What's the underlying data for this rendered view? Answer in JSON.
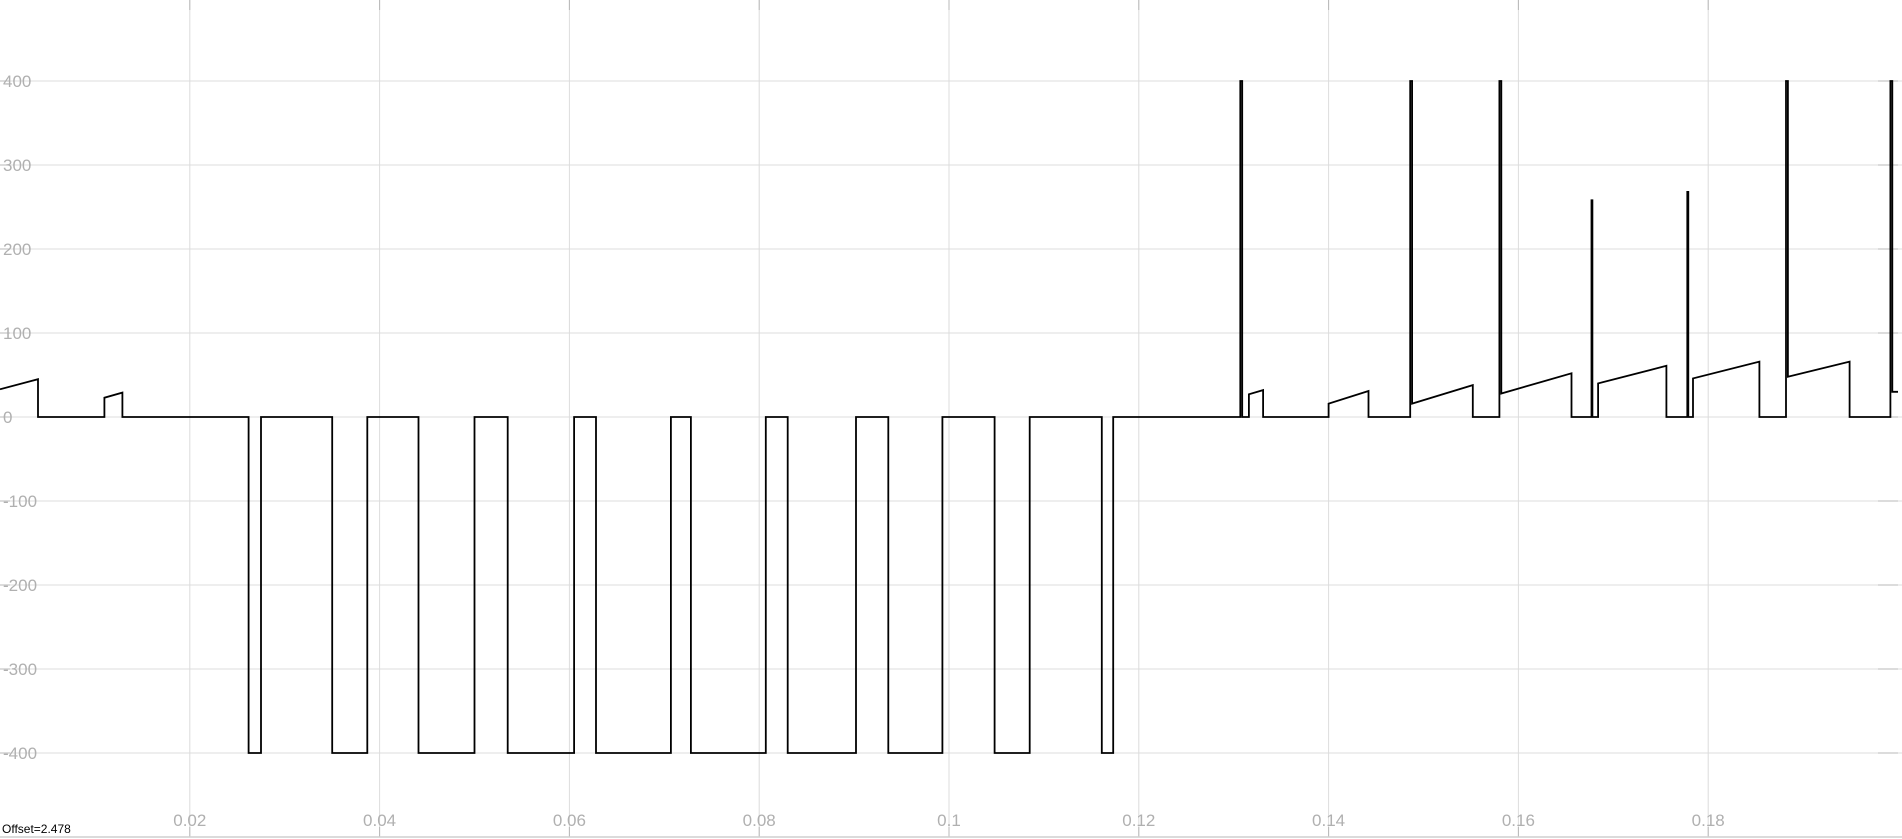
{
  "chart_data": {
    "type": "line",
    "title": "",
    "xlabel": "",
    "ylabel": "",
    "xlim": [
      0,
      0.2
    ],
    "ylim": [
      -470,
      500
    ],
    "grid": true,
    "x_ticks": [
      0.02,
      0.04,
      0.06,
      0.08,
      0.1,
      0.12,
      0.14,
      0.16,
      0.18
    ],
    "x_tick_labels": [
      "0.02",
      "0.04",
      "0.06",
      "0.08",
      "0.1",
      "0.12",
      "0.14",
      "0.16",
      "0.18"
    ],
    "y_ticks": [
      400,
      300,
      200,
      100,
      0,
      -100,
      -200,
      -300,
      -400
    ],
    "y_tick_labels": [
      "400",
      "300",
      "200",
      "100",
      "0",
      "-100",
      "-200",
      "-300",
      "-400"
    ],
    "offset_text": "Offset=2.478",
    "series": [
      {
        "color": "#000000",
        "points": [
          [
            0,
            33
          ],
          [
            0.004,
            45
          ],
          [
            0.004,
            0
          ],
          [
            0.011,
            0
          ],
          [
            0.011,
            23
          ],
          [
            0.0129,
            29
          ],
          [
            0.0129,
            0
          ],
          [
            0.0262,
            0
          ],
          [
            0.0262,
            -400
          ],
          [
            0.0275,
            -400
          ],
          [
            0.0275,
            0
          ],
          [
            0.035,
            0
          ],
          [
            0.035,
            -400
          ],
          [
            0.0387,
            -400
          ],
          [
            0.0387,
            0
          ],
          [
            0.0441,
            0
          ],
          [
            0.0441,
            -400
          ],
          [
            0.05,
            -400
          ],
          [
            0.05,
            0
          ],
          [
            0.0535,
            0
          ],
          [
            0.0535,
            -400
          ],
          [
            0.0605,
            -400
          ],
          [
            0.0605,
            0
          ],
          [
            0.0628,
            0
          ],
          [
            0.0628,
            -400
          ],
          [
            0.0707,
            -400
          ],
          [
            0.0707,
            0
          ],
          [
            0.0728,
            0
          ],
          [
            0.0728,
            -400
          ],
          [
            0.0807,
            -400
          ],
          [
            0.0807,
            0
          ],
          [
            0.083,
            0
          ],
          [
            0.083,
            -400
          ],
          [
            0.0902,
            -400
          ],
          [
            0.0902,
            0
          ],
          [
            0.0936,
            0
          ],
          [
            0.0936,
            -400
          ],
          [
            0.0993,
            -400
          ],
          [
            0.0993,
            0
          ],
          [
            0.1048,
            0
          ],
          [
            0.1048,
            -400
          ],
          [
            0.1085,
            -400
          ],
          [
            0.1085,
            0
          ],
          [
            0.1161,
            0
          ],
          [
            0.1161,
            -400
          ],
          [
            0.1173,
            -400
          ],
          [
            0.1173,
            0
          ],
          [
            0.1307,
            0
          ],
          [
            0.1307,
            400
          ],
          [
            0.1309,
            400
          ],
          [
            0.1309,
            0
          ],
          [
            0.1316,
            0
          ],
          [
            0.1316,
            27
          ],
          [
            0.1331,
            32
          ],
          [
            0.1331,
            0
          ],
          [
            0.14,
            0
          ],
          [
            0.14,
            16
          ],
          [
            0.1442,
            31
          ],
          [
            0.1442,
            0
          ],
          [
            0.1486,
            0
          ],
          [
            0.1486,
            400
          ],
          [
            0.1488,
            400
          ],
          [
            0.1488,
            16
          ],
          [
            0.1552,
            38
          ],
          [
            0.1552,
            0
          ],
          [
            0.158,
            0
          ],
          [
            0.158,
            400
          ],
          [
            0.1582,
            400
          ],
          [
            0.1582,
            28
          ],
          [
            0.1656,
            52
          ],
          [
            0.1656,
            0
          ],
          [
            0.1677,
            0
          ],
          [
            0.1677,
            258
          ],
          [
            0.1678,
            258
          ],
          [
            0.1678,
            0
          ],
          [
            0.1684,
            0
          ],
          [
            0.1684,
            40
          ],
          [
            0.1756,
            61
          ],
          [
            0.1756,
            0
          ],
          [
            0.1778,
            0
          ],
          [
            0.1778,
            268
          ],
          [
            0.1779,
            268
          ],
          [
            0.1779,
            0
          ],
          [
            0.1784,
            0
          ],
          [
            0.1784,
            46
          ],
          [
            0.1854,
            66
          ],
          [
            0.1854,
            0
          ],
          [
            0.1882,
            0
          ],
          [
            0.1882,
            400
          ],
          [
            0.1884,
            400
          ],
          [
            0.1884,
            48
          ],
          [
            0.1949,
            66
          ],
          [
            0.1949,
            0
          ],
          [
            0.1992,
            0
          ],
          [
            0.1992,
            400
          ],
          [
            0.1994,
            400
          ],
          [
            0.1994,
            30
          ],
          [
            0.2,
            30
          ]
        ]
      }
    ]
  }
}
